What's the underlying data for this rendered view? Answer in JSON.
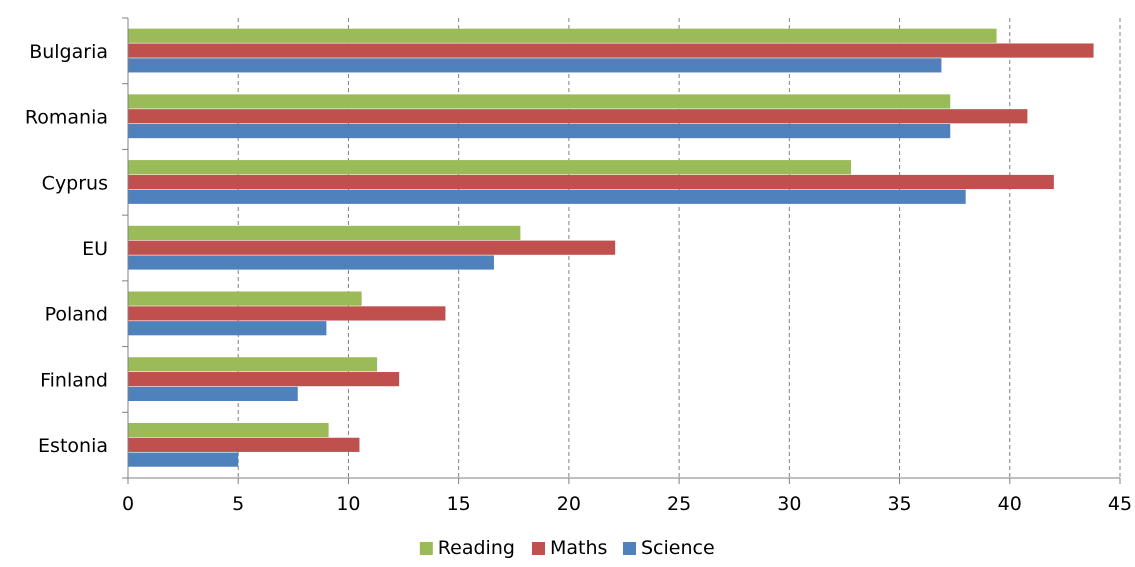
{
  "chart_data": {
    "type": "bar",
    "orientation": "horizontal",
    "categories": [
      "Bulgaria",
      "Romania",
      "Cyprus",
      "EU",
      "Poland",
      "Finland",
      "Estonia"
    ],
    "series": [
      {
        "name": "Reading",
        "color": "#9BBB59",
        "values": [
          39.4,
          37.3,
          32.8,
          17.8,
          10.6,
          11.3,
          9.1
        ]
      },
      {
        "name": "Maths",
        "color": "#C0504D",
        "values": [
          43.8,
          40.8,
          42.0,
          22.1,
          14.4,
          12.3,
          10.5
        ]
      },
      {
        "name": "Science",
        "color": "#4F81BD",
        "values": [
          36.9,
          37.3,
          38.0,
          16.6,
          9.0,
          7.7,
          5.0
        ]
      }
    ],
    "x_ticks": [
      "0",
      "5",
      "10",
      "15",
      "20",
      "25",
      "30",
      "35",
      "40",
      "45"
    ],
    "xlim": [
      0,
      45
    ],
    "grid": "vertical dashed",
    "legend_position": "bottom",
    "title": "",
    "xlabel": "",
    "ylabel": ""
  }
}
